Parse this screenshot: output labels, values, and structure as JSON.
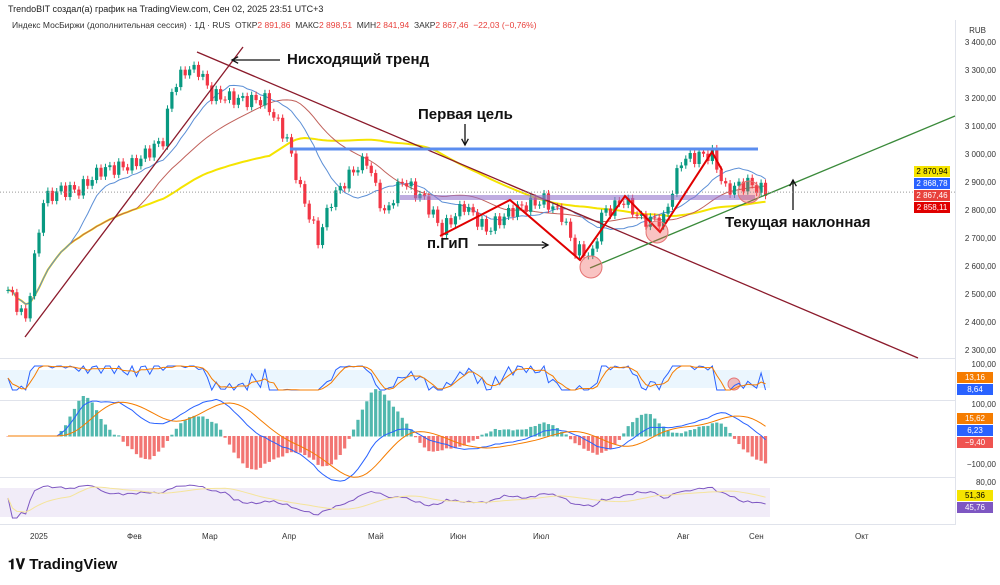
{
  "header": {
    "credit": "TrendoBIT создал(а) график на TradingView.com, Сен 02, 2025 23:51 UTC+3",
    "symbol": "Индекс МосБиржи (дополнительная сессия) · 1Д · RUS",
    "open_label": "ОТКР",
    "open": "2 891,86",
    "high_label": "МАКС",
    "high": "2 898,51",
    "low_label": "МИН",
    "low": "2 841,94",
    "close_label": "ЗАКР",
    "close": "2 867,46",
    "change": "−22,03 (−0,76%)"
  },
  "currency": "RUB",
  "price_tags": [
    {
      "v": "2 870,94",
      "c": "#f5e400",
      "fg": "#000"
    },
    {
      "v": "2 868,78",
      "c": "#2962ff",
      "fg": "#fff"
    },
    {
      "v": "2 867,46",
      "c": "#e8413c",
      "fg": "#fff"
    },
    {
      "v": "2 858,11",
      "c": "#e00000",
      "fg": "#fff"
    }
  ],
  "stoch_tags": [
    {
      "v": "13,16",
      "c": "#f57c00"
    },
    {
      "v": "8,64",
      "c": "#2962ff"
    }
  ],
  "macd_tags": [
    {
      "v": "15,62",
      "c": "#f57c00"
    },
    {
      "v": "6,23",
      "c": "#2962ff"
    },
    {
      "v": "−9,40",
      "c": "#ef5350"
    }
  ],
  "rsi_tags": [
    {
      "v": "51,36",
      "c": "#f5e400",
      "fg": "#000"
    },
    {
      "v": "45,76",
      "c": "#7e57c2"
    }
  ],
  "indicator_axis": {
    "stoch_top": "100,00",
    "macd_top": "100,00",
    "macd_bottom": "−100,00",
    "rsi_top": "80,00"
  },
  "annotations": {
    "downtrend": "Нисходящий тренд",
    "target": "Первая цель",
    "hs": "п.ГиП",
    "slope": "Текущая наклонная"
  },
  "brand": "TradingView",
  "chart_data": {
    "type": "candlestick",
    "ylim": [
      2300,
      3400
    ],
    "yticks": [
      3400,
      3300,
      3200,
      3100,
      3000,
      2900,
      2800,
      2700,
      2600,
      2500,
      2400,
      2300
    ],
    "ytick_labels": [
      "3 400,00",
      "3 300,00",
      "3 200,00",
      "3 100,00",
      "3 000,00",
      "2 900,00",
      "2 800,00",
      "2 700,00",
      "2 600,00",
      "2 500,00",
      "2 400,00",
      "2 300,00"
    ],
    "xtick_labels": [
      "2025",
      "Фев",
      "Мар",
      "Апр",
      "Май",
      "Июн",
      "Июл",
      "Авг",
      "Сен",
      "Окт"
    ],
    "close_path": [
      [
        0,
        2518
      ],
      [
        4,
        2411
      ],
      [
        6,
        2625
      ],
      [
        8,
        2839
      ],
      [
        12,
        2875
      ],
      [
        16,
        2875
      ],
      [
        21,
        2946
      ],
      [
        28,
        2964
      ],
      [
        35,
        3054
      ],
      [
        37,
        3232
      ],
      [
        40,
        3304
      ],
      [
        43,
        3304
      ],
      [
        46,
        3214
      ],
      [
        53,
        3196
      ],
      [
        58,
        3196
      ],
      [
        63,
        3054
      ],
      [
        66,
        2875
      ],
      [
        70,
        2696
      ],
      [
        73,
        2839
      ],
      [
        78,
        2946
      ],
      [
        81,
        2982
      ],
      [
        85,
        2786
      ],
      [
        89,
        2911
      ],
      [
        94,
        2839
      ],
      [
        98,
        2732
      ],
      [
        103,
        2821
      ],
      [
        108,
        2732
      ],
      [
        114,
        2804
      ],
      [
        121,
        2839
      ],
      [
        125,
        2786
      ],
      [
        128,
        2661
      ],
      [
        132,
        2643
      ],
      [
        134,
        2786
      ],
      [
        139,
        2839
      ],
      [
        143,
        2768
      ],
      [
        148,
        2768
      ],
      [
        152,
        2982
      ],
      [
        157,
        3000
      ],
      [
        159,
        3000
      ],
      [
        162,
        2875
      ],
      [
        167,
        2900
      ],
      [
        171,
        2868
      ]
    ],
    "levels": {
      "first_target": 3015,
      "current": 2867.46
    }
  }
}
